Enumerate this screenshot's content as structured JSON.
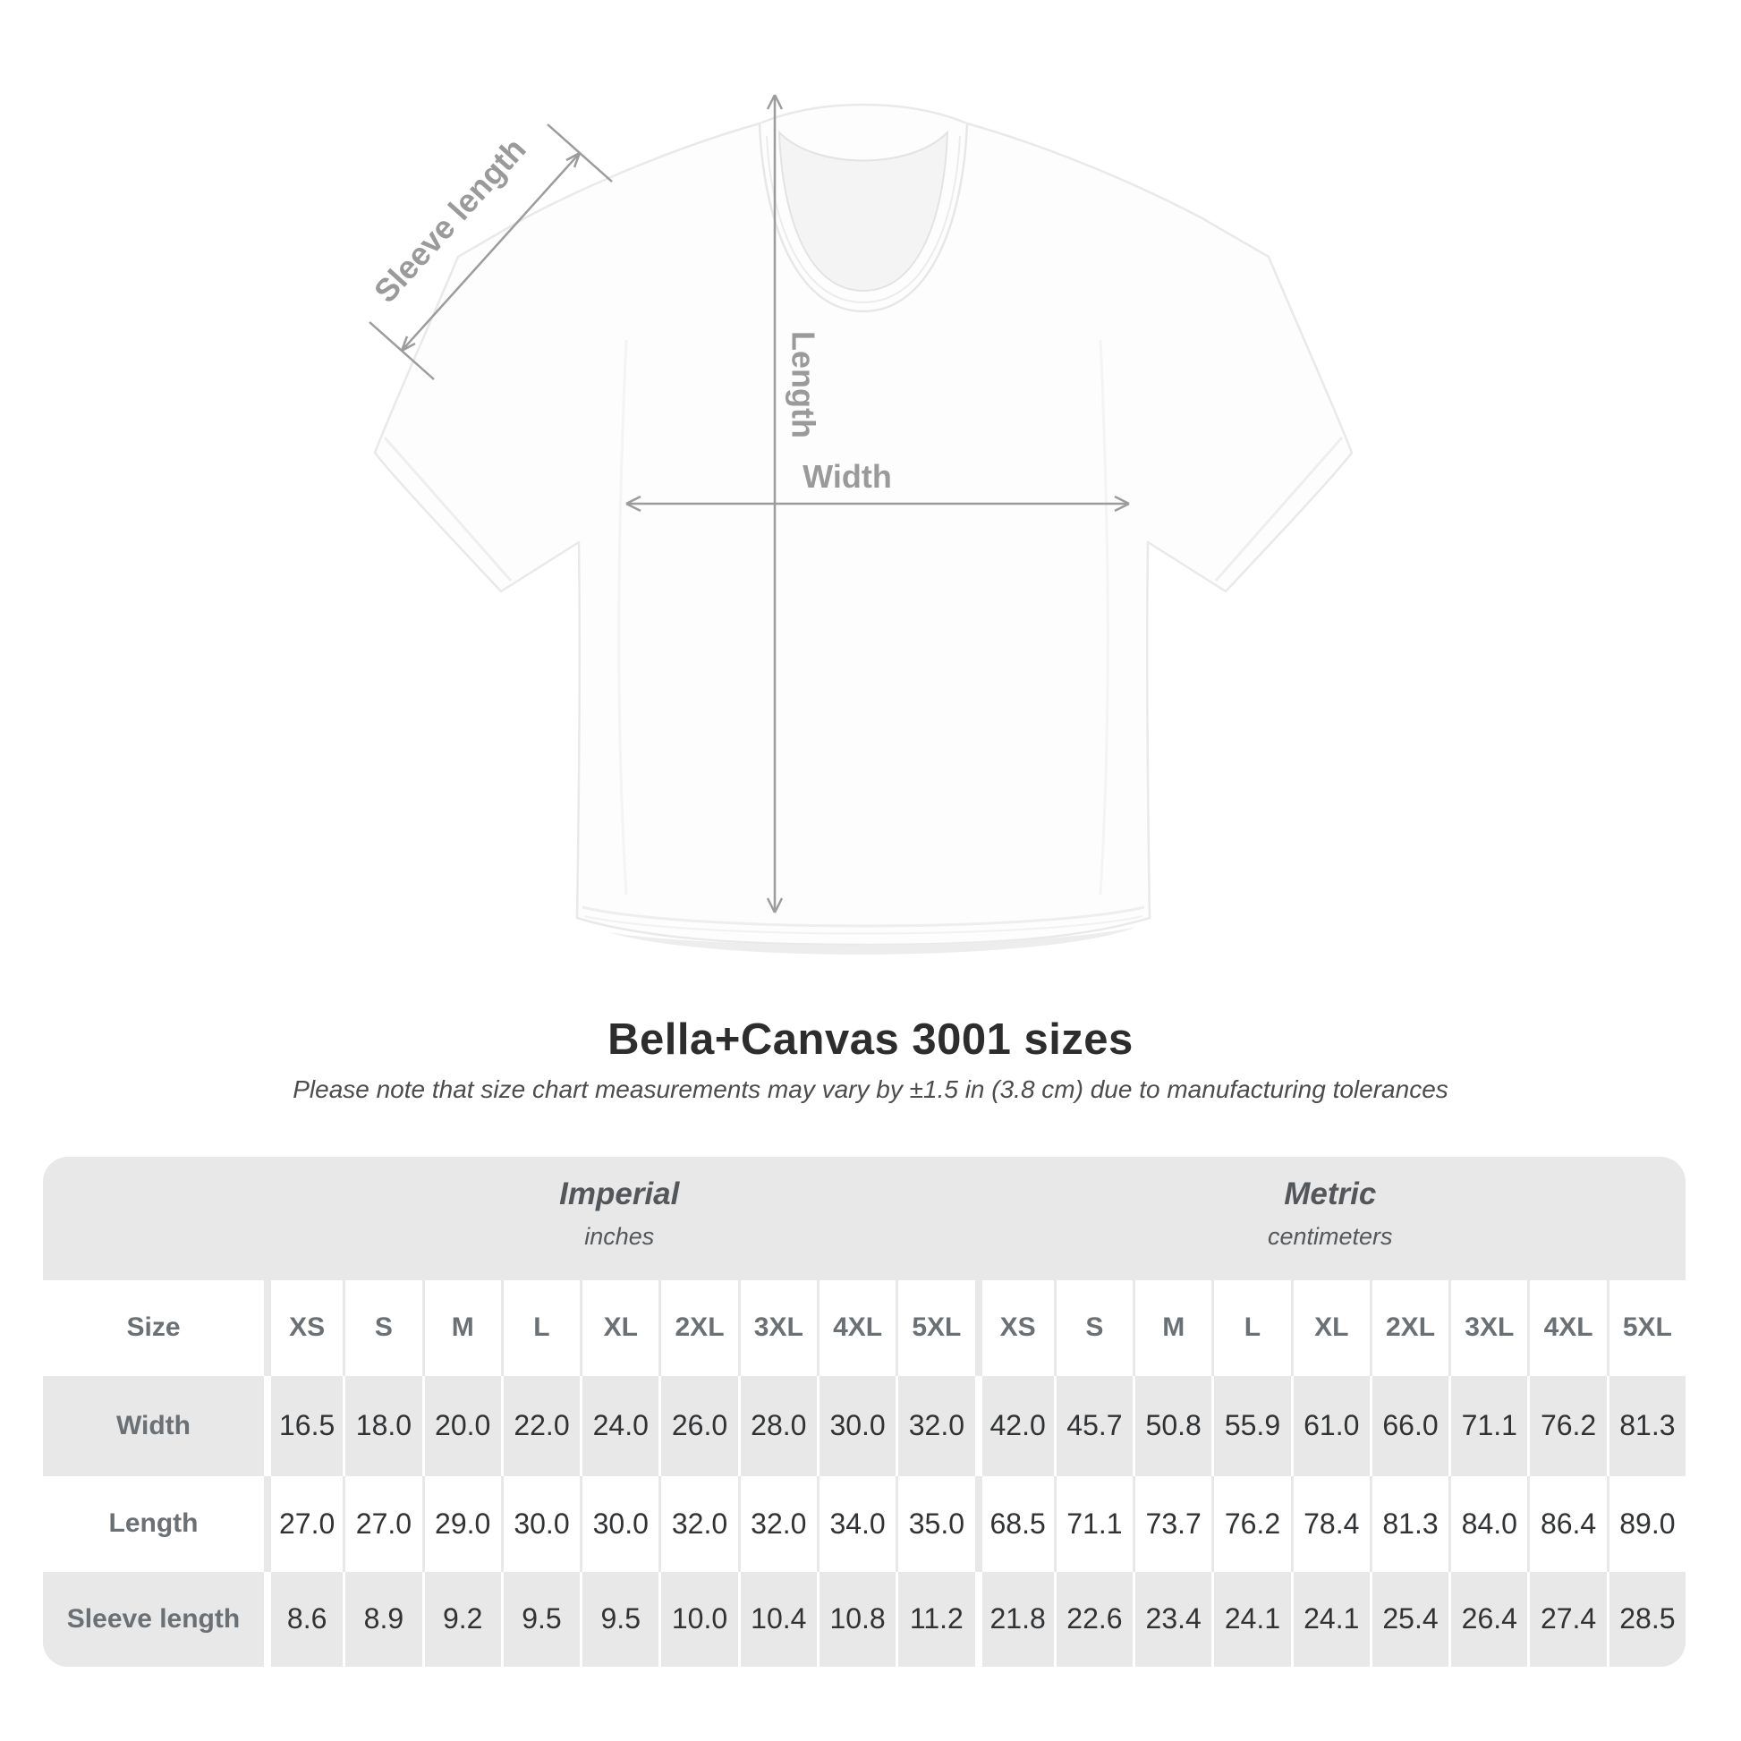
{
  "diagram": {
    "labels": {
      "sleeve_length": "Sleeve length",
      "length": "Length",
      "width": "Width"
    },
    "colors": {
      "annotation": "#9c9c9c",
      "label_text": "#9a9a9a",
      "shirt_fill": "#fdfdfd",
      "shirt_outline": "#e9e9e9"
    }
  },
  "title_block": {
    "title": "Bella+Canvas 3001 sizes",
    "subtitle": "Please note that size chart measurements may vary by ±1.5 in (3.8 cm) due to manufacturing tolerances"
  },
  "table": {
    "size_header_label": "Size",
    "sizes": [
      "XS",
      "S",
      "M",
      "L",
      "XL",
      "2XL",
      "3XL",
      "4XL",
      "5XL"
    ],
    "unit_groups": [
      {
        "title": "Imperial",
        "subtitle": "inches"
      },
      {
        "title": "Metric",
        "subtitle": "centimeters"
      }
    ],
    "rows": [
      {
        "label": "Width",
        "imperial": [
          "16.5",
          "18.0",
          "20.0",
          "22.0",
          "24.0",
          "26.0",
          "28.0",
          "30.0",
          "32.0"
        ],
        "metric": [
          "42.0",
          "45.7",
          "50.8",
          "55.9",
          "61.0",
          "66.0",
          "71.1",
          "76.2",
          "81.3"
        ]
      },
      {
        "label": "Length",
        "imperial": [
          "27.0",
          "27.0",
          "29.0",
          "30.0",
          "30.0",
          "32.0",
          "32.0",
          "34.0",
          "35.0"
        ],
        "metric": [
          "68.5",
          "71.1",
          "73.7",
          "76.2",
          "78.4",
          "81.3",
          "84.0",
          "86.4",
          "89.0"
        ]
      },
      {
        "label": "Sleeve length",
        "imperial": [
          "8.6",
          "8.9",
          "9.2",
          "9.5",
          "9.5",
          "10.0",
          "10.4",
          "10.8",
          "11.2"
        ],
        "metric": [
          "21.8",
          "22.6",
          "23.4",
          "24.1",
          "24.1",
          "25.4",
          "26.4",
          "27.4",
          "28.5"
        ]
      }
    ],
    "colors": {
      "card_bg": "#e8e8e8",
      "row_alt": "#e8e8e8",
      "header_text": "#6b7074",
      "value_text": "#303234"
    }
  },
  "chart_data": {
    "type": "table",
    "title": "Bella+Canvas 3001 sizes",
    "columns": [
      "XS",
      "S",
      "M",
      "L",
      "XL",
      "2XL",
      "3XL",
      "4XL",
      "5XL"
    ],
    "series": [
      {
        "name": "Width (inches)",
        "values": [
          16.5,
          18.0,
          20.0,
          22.0,
          24.0,
          26.0,
          28.0,
          30.0,
          32.0
        ]
      },
      {
        "name": "Length (inches)",
        "values": [
          27.0,
          27.0,
          29.0,
          30.0,
          30.0,
          32.0,
          32.0,
          34.0,
          35.0
        ]
      },
      {
        "name": "Sleeve length (inches)",
        "values": [
          8.6,
          8.9,
          9.2,
          9.5,
          9.5,
          10.0,
          10.4,
          10.8,
          11.2
        ]
      },
      {
        "name": "Width (cm)",
        "values": [
          42.0,
          45.7,
          50.8,
          55.9,
          61.0,
          66.0,
          71.1,
          76.2,
          81.3
        ]
      },
      {
        "name": "Length (cm)",
        "values": [
          68.5,
          71.1,
          73.7,
          76.2,
          78.4,
          81.3,
          84.0,
          86.4,
          89.0
        ]
      },
      {
        "name": "Sleeve length (cm)",
        "values": [
          21.8,
          22.6,
          23.4,
          24.1,
          24.1,
          25.4,
          26.4,
          27.4,
          28.5
        ]
      }
    ]
  }
}
